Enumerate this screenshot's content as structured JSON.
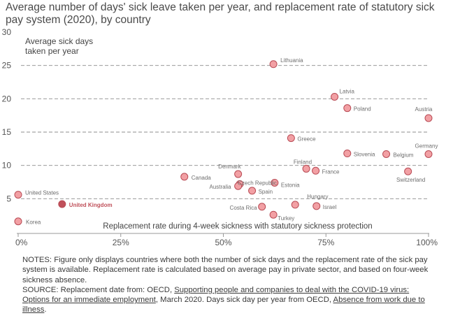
{
  "title": "Average number of days' sick leave taken per year, and replacement rate of statutory sick pay system (2020), by country",
  "chart_data": {
    "type": "scatter",
    "title": "Average number of days' sick leave taken per year, and replacement rate of statutory sick pay system (2020), by country",
    "xlabel": "Replacement rate during 4-week sickness with statutory sickness protection",
    "ylabel": "Average sick days taken per year",
    "xlim": [
      0,
      100
    ],
    "ylim": [
      0,
      30
    ],
    "xticks": [
      "0%",
      "25%",
      "50%",
      "75%",
      "100%"
    ],
    "yticks": [
      "5",
      "10",
      "15",
      "20",
      "25",
      "30"
    ],
    "grid": "horizontal dashed",
    "colors": {
      "point": "#f2a0a4",
      "point_stroke": "#b84a54",
      "highlight": "#c0505a",
      "grid": "#8c8c8c",
      "label": "#6e6e6e"
    },
    "highlight": "United Kingdom",
    "points": [
      {
        "country": "Korea",
        "x": 0,
        "y": 1.6
      },
      {
        "country": "United States",
        "x": 0,
        "y": 5.6
      },
      {
        "country": "United Kingdom",
        "x": 10.7,
        "y": 4.2
      },
      {
        "country": "Canada",
        "x": 40.5,
        "y": 8.3
      },
      {
        "country": "Denmark",
        "x": 53.6,
        "y": 8.7
      },
      {
        "country": "Czech Republic",
        "x": 54,
        "y": 7.2
      },
      {
        "country": "Australia",
        "x": 53.6,
        "y": 6.9
      },
      {
        "country": "Spain",
        "x": 57,
        "y": 6.2
      },
      {
        "country": "Estonia",
        "x": 62.5,
        "y": 7.4
      },
      {
        "country": "Costa Rica",
        "x": 59.4,
        "y": 3.8
      },
      {
        "country": "Turkey",
        "x": 62.2,
        "y": 2.6
      },
      {
        "country": "Hungary",
        "x": 67.5,
        "y": 4.1
      },
      {
        "country": "Israel",
        "x": 72.7,
        "y": 3.9
      },
      {
        "country": "Finland",
        "x": 70.2,
        "y": 9.5
      },
      {
        "country": "France",
        "x": 72.5,
        "y": 9.2
      },
      {
        "country": "Greece",
        "x": 66.5,
        "y": 14.1
      },
      {
        "country": "Lithuania",
        "x": 62.2,
        "y": 25.2
      },
      {
        "country": "Latvia",
        "x": 77.1,
        "y": 20.3
      },
      {
        "country": "Poland",
        "x": 80.2,
        "y": 18.6
      },
      {
        "country": "Slovenia",
        "x": 80.2,
        "y": 11.8
      },
      {
        "country": "Belgium",
        "x": 89.7,
        "y": 11.7
      },
      {
        "country": "Switzerland",
        "x": 95,
        "y": 9.1
      },
      {
        "country": "Germany",
        "x": 100,
        "y": 11.7
      },
      {
        "country": "Austria",
        "x": 100,
        "y": 17.1
      }
    ]
  },
  "notes": {
    "notes_text": "NOTES: Figure only displays countries where both the number of sick days and the replacement rate of the sick pay system is available. Replacement rate is calculated based on average pay in private sector, and based on four-week sickness absence.",
    "source_prefix": "SOURCE: Replacement date from: OECD, ",
    "source_link1": "Supporting people and companies to deal with the COVID-19 virus: Options for an immediate employment",
    "source_mid": ", March 2020. Days sick day per year from OECD, ",
    "source_link2": "Absence from work due to illness",
    "source_end": "."
  }
}
